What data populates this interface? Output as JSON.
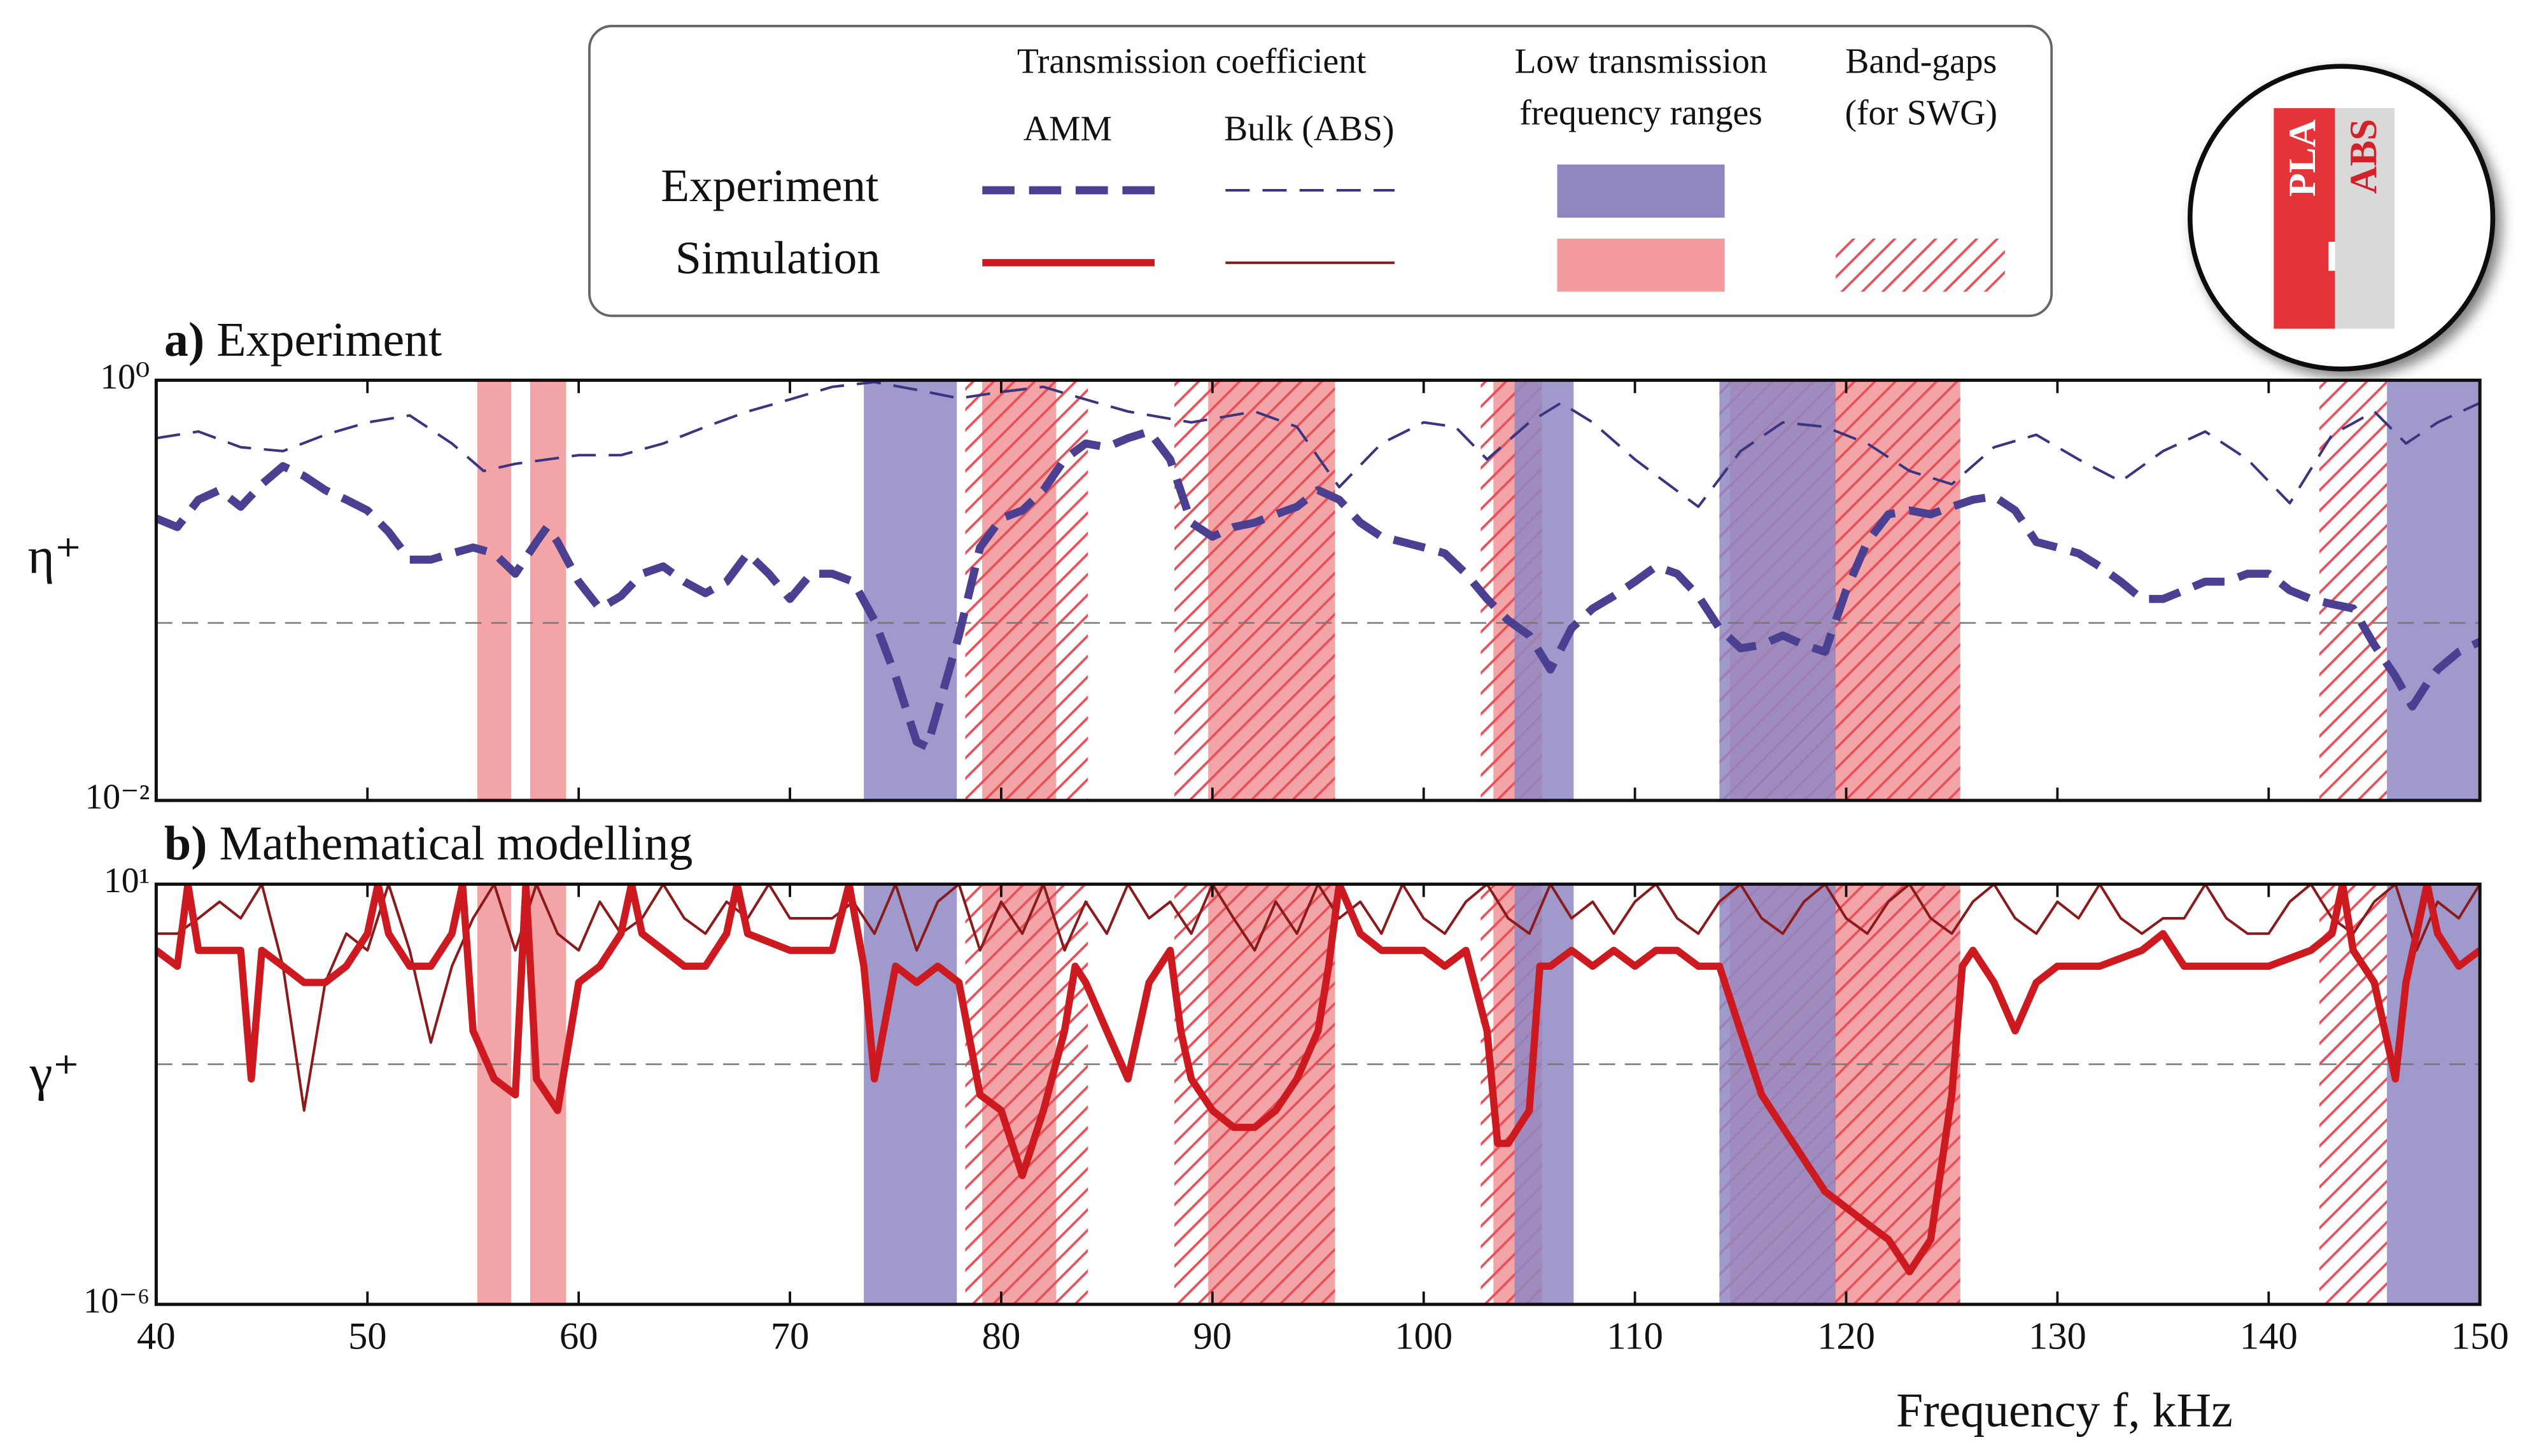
{
  "legend": {
    "header": "Transmission coefficient",
    "rows": [
      "Experiment",
      "Simulation"
    ],
    "low_transmission_label": [
      "Low transmission",
      "frequency ranges"
    ],
    "band_gaps_label": [
      "Band-gaps",
      "(for SWG)"
    ]
  },
  "inset": {
    "labels": [
      "PLA",
      "ABS"
    ]
  },
  "xlabel": "Frequency f, kHz",
  "ranges": {
    "experiment": {
      "color": "#8f87c2",
      "spans": [
        [
          73.5,
          77.9
        ],
        [
          104.3,
          107.1
        ],
        [
          114.0,
          119.5
        ],
        [
          145.6,
          150
        ]
      ]
    },
    "simulation": {
      "color": "#f29a9c",
      "spans": [
        [
          55.2,
          56.8
        ],
        [
          57.7,
          59.4
        ],
        [
          79.1,
          82.6
        ],
        [
          89.8,
          95.8
        ],
        [
          103.3,
          105.6
        ],
        [
          114.5,
          125.4
        ]
      ]
    },
    "band_gaps": {
      "color": "#e8505a",
      "spans": [
        [
          78.3,
          84.1
        ],
        [
          88.2,
          95.8
        ],
        [
          102.7,
          105.6
        ],
        [
          114.0,
          125.4
        ],
        [
          142.4,
          145.6
        ]
      ]
    }
  },
  "chart_data": [
    {
      "type": "line",
      "panel": "a)",
      "title": "Experiment",
      "ylabel": "η⁺",
      "log_scale": true,
      "xlim": [
        40,
        150
      ],
      "xticks": [
        40,
        50,
        60,
        70,
        80,
        90,
        100,
        110,
        120,
        130,
        140,
        150
      ],
      "ylim": [
        0.01,
        1
      ],
      "yticks": [
        {
          "value": 1,
          "label": "10⁰"
        },
        {
          "value": 0.01,
          "label": "10⁻²"
        }
      ],
      "threshold": 0.07,
      "series": [
        {
          "name": "AMM",
          "color": "#4a3f90",
          "dashed": true,
          "x": [
            40,
            41,
            42,
            43,
            44,
            45,
            46,
            47,
            48,
            49,
            50,
            51,
            52,
            53,
            54,
            55,
            56,
            57,
            58,
            58.5,
            59,
            60,
            61,
            62,
            63,
            64,
            65,
            66,
            67,
            68,
            69,
            70,
            71,
            72,
            73,
            74,
            75,
            76,
            76.5,
            77,
            78,
            79,
            80,
            81,
            82,
            83,
            84,
            85,
            86,
            87,
            88,
            89,
            90,
            91,
            92,
            93,
            94,
            95,
            96,
            97,
            98,
            99,
            100,
            101,
            102,
            103,
            104,
            105,
            106,
            107,
            108,
            109,
            110,
            111,
            112,
            113,
            114,
            115,
            116,
            117,
            118,
            119,
            120,
            121,
            122,
            123,
            124,
            125,
            126,
            127,
            128,
            129,
            130,
            131,
            132,
            133,
            134,
            135,
            136,
            137,
            138,
            139,
            140,
            141,
            142,
            143,
            144,
            145,
            146,
            146.8,
            147.5,
            148,
            149,
            150
          ],
          "values": [
            0.22,
            0.2,
            0.27,
            0.3,
            0.25,
            0.32,
            0.39,
            0.35,
            0.3,
            0.27,
            0.24,
            0.19,
            0.14,
            0.14,
            0.15,
            0.16,
            0.15,
            0.12,
            0.17,
            0.2,
            0.17,
            0.11,
            0.082,
            0.094,
            0.12,
            0.13,
            0.11,
            0.097,
            0.11,
            0.15,
            0.12,
            0.091,
            0.12,
            0.12,
            0.11,
            0.072,
            0.039,
            0.019,
            0.018,
            0.027,
            0.061,
            0.16,
            0.22,
            0.24,
            0.3,
            0.42,
            0.5,
            0.48,
            0.53,
            0.57,
            0.42,
            0.21,
            0.18,
            0.2,
            0.21,
            0.23,
            0.25,
            0.3,
            0.27,
            0.21,
            0.18,
            0.17,
            0.16,
            0.15,
            0.12,
            0.091,
            0.072,
            0.061,
            0.042,
            0.066,
            0.082,
            0.094,
            0.11,
            0.13,
            0.12,
            0.094,
            0.066,
            0.053,
            0.055,
            0.061,
            0.055,
            0.051,
            0.1,
            0.17,
            0.23,
            0.24,
            0.23,
            0.25,
            0.27,
            0.28,
            0.24,
            0.17,
            0.16,
            0.15,
            0.13,
            0.11,
            0.091,
            0.091,
            0.1,
            0.11,
            0.11,
            0.12,
            0.12,
            0.1,
            0.091,
            0.086,
            0.082,
            0.055,
            0.039,
            0.028,
            0.036,
            0.042,
            0.051,
            0.057
          ]
        },
        {
          "name": "Bulk (ABS)",
          "color": "#3b3580",
          "dashed": true,
          "x": [
            40,
            42,
            44,
            46,
            48,
            50,
            52,
            54,
            55.5,
            57,
            60,
            62,
            64,
            66,
            68,
            70,
            72,
            74,
            76,
            78,
            80,
            82,
            84,
            86,
            89,
            92,
            94,
            96,
            98,
            100,
            101.5,
            103,
            105,
            106.5,
            108,
            110,
            113,
            115,
            117,
            119,
            121,
            123,
            125,
            127,
            129,
            131,
            133,
            135,
            137,
            139,
            141,
            143,
            145,
            146.5,
            148,
            150
          ],
          "values": [
            0.53,
            0.57,
            0.48,
            0.46,
            0.55,
            0.63,
            0.68,
            0.5,
            0.37,
            0.4,
            0.44,
            0.44,
            0.5,
            0.6,
            0.71,
            0.81,
            0.93,
            0.98,
            0.9,
            0.82,
            0.88,
            0.93,
            0.81,
            0.71,
            0.63,
            0.71,
            0.6,
            0.31,
            0.5,
            0.63,
            0.6,
            0.42,
            0.63,
            0.78,
            0.63,
            0.42,
            0.25,
            0.46,
            0.63,
            0.6,
            0.5,
            0.37,
            0.32,
            0.48,
            0.55,
            0.42,
            0.33,
            0.46,
            0.57,
            0.42,
            0.26,
            0.55,
            0.71,
            0.5,
            0.63,
            0.78
          ]
        }
      ]
    },
    {
      "type": "line",
      "panel": "b)",
      "title": "Mathematical modelling",
      "ylabel": "γ⁺",
      "log_scale": true,
      "xlim": [
        40,
        150
      ],
      "xticks": [
        40,
        50,
        60,
        70,
        80,
        90,
        100,
        110,
        120,
        130,
        140,
        150
      ],
      "ylim": [
        1e-06,
        10
      ],
      "yticks": [
        {
          "value": 10,
          "label": "10¹"
        },
        {
          "value": 1e-06,
          "label": "10⁻⁶"
        }
      ],
      "threshold": 0.01,
      "series": [
        {
          "name": "AMM",
          "color": "#cc1a20",
          "dashed": false,
          "x": [
            40,
            41,
            41.5,
            42,
            43,
            44,
            44.5,
            45,
            46,
            47,
            48,
            49,
            50,
            50.5,
            51,
            52,
            53,
            54,
            54.5,
            55,
            56,
            57,
            57.5,
            58,
            59,
            60,
            61,
            62,
            62.5,
            63,
            65,
            66,
            67,
            67.5,
            68,
            70,
            72,
            72.8,
            73.5,
            74,
            75,
            76,
            77,
            78,
            79,
            80,
            81,
            82,
            83,
            83.5,
            84,
            85,
            86,
            87,
            88,
            88.5,
            89,
            90,
            91,
            92,
            93,
            94,
            95,
            95.5,
            96,
            97,
            98,
            100,
            101,
            102,
            103,
            103.5,
            104,
            105,
            105.5,
            106,
            107,
            108,
            109,
            110,
            111,
            112,
            113,
            114,
            115,
            116,
            117,
            118,
            119,
            120,
            121,
            122,
            123,
            124,
            125,
            125.5,
            126,
            127,
            128,
            129,
            130,
            132,
            134,
            135,
            136,
            138,
            140,
            142,
            143,
            143.5,
            144,
            145,
            146,
            146.5,
            147,
            147.5,
            148,
            149,
            150
          ],
          "values": [
            0.79,
            0.43,
            10,
            0.79,
            0.79,
            0.79,
            0.0057,
            0.79,
            0.43,
            0.23,
            0.23,
            0.43,
            1.5,
            10,
            1.5,
            0.43,
            0.43,
            1.5,
            10,
            0.036,
            0.0057,
            0.0031,
            10,
            0.0057,
            0.0017,
            0.23,
            0.43,
            1.5,
            10,
            1.5,
            0.43,
            0.43,
            1.5,
            10,
            1.5,
            0.79,
            0.79,
            10,
            0.43,
            0.0057,
            0.43,
            0.23,
            0.43,
            0.23,
            0.0031,
            0.0017,
            0.00014,
            0.0017,
            0.036,
            0.43,
            0.23,
            0.036,
            0.0057,
            0.23,
            0.79,
            0.036,
            0.0057,
            0.0017,
            0.00089,
            0.00089,
            0.0017,
            0.0057,
            0.036,
            0.43,
            10,
            1.5,
            0.79,
            0.79,
            0.43,
            0.79,
            0.036,
            0.00048,
            0.00048,
            0.0017,
            0.43,
            0.43,
            0.79,
            0.43,
            0.79,
            0.43,
            0.79,
            0.79,
            0.43,
            0.43,
            0.036,
            0.0031,
            0.00089,
            0.00026,
            7.6e-05,
            4.1e-05,
            2.2e-05,
            1.2e-05,
            3.5e-06,
            1.2e-05,
            0.0031,
            0.43,
            0.79,
            0.23,
            0.036,
            0.23,
            0.43,
            0.43,
            0.79,
            1.5,
            0.43,
            0.43,
            0.43,
            0.79,
            1.5,
            10,
            0.79,
            0.23,
            0.0057,
            0.23,
            1.5,
            10,
            1.5,
            0.43,
            0.79
          ]
        },
        {
          "name": "Bulk (ABS)",
          "color": "#8a1a1c",
          "dashed": false,
          "x": [
            40,
            41,
            42,
            43,
            44,
            45,
            46,
            47,
            48,
            49,
            50,
            51,
            52,
            53,
            54,
            55,
            56,
            57,
            58,
            59,
            60,
            61,
            62,
            63,
            64,
            65,
            66,
            67,
            68,
            69,
            70,
            71,
            72,
            73,
            74,
            75,
            76,
            77,
            78,
            79,
            80,
            81,
            82,
            83,
            84,
            85,
            86,
            87,
            88,
            89,
            90,
            91,
            92,
            93,
            94,
            95,
            96,
            97,
            98,
            99,
            100,
            101,
            102,
            103,
            104,
            105,
            106,
            107,
            108,
            109,
            110,
            111,
            112,
            113,
            114,
            115,
            116,
            117,
            118,
            119,
            120,
            121,
            122,
            123,
            124,
            125,
            126,
            127,
            128,
            129,
            130,
            131,
            132,
            133,
            134,
            135,
            136,
            137,
            138,
            139,
            140,
            141,
            142,
            143,
            144,
            145,
            146,
            147,
            148,
            149,
            150
          ],
          "values": [
            1.5,
            1.5,
            2.7,
            5.1,
            2.7,
            10,
            0.43,
            0.0017,
            0.23,
            1.5,
            0.79,
            10,
            0.79,
            0.023,
            0.43,
            2.7,
            10,
            0.79,
            10,
            1.5,
            0.79,
            5.1,
            1.5,
            2.7,
            10,
            2.7,
            1.5,
            5.1,
            2.7,
            10,
            2.7,
            2.7,
            2.7,
            5.1,
            1.5,
            10,
            0.79,
            5.1,
            10,
            0.79,
            5.1,
            1.5,
            10,
            0.79,
            5.1,
            1.5,
            10,
            2.7,
            5.1,
            1.5,
            10,
            2.7,
            0.79,
            5.1,
            1.5,
            10,
            2.7,
            5.1,
            1.5,
            10,
            2.7,
            1.5,
            5.1,
            10,
            2.7,
            1.5,
            10,
            2.7,
            5.1,
            1.5,
            5.1,
            10,
            2.7,
            1.5,
            5.1,
            10,
            2.7,
            1.5,
            5.1,
            10,
            2.7,
            1.5,
            5.1,
            10,
            2.7,
            1.5,
            5.1,
            10,
            2.7,
            1.5,
            5.1,
            2.7,
            10,
            2.7,
            1.5,
            2.7,
            2.7,
            10,
            2.7,
            1.5,
            1.5,
            5.1,
            10,
            2.7,
            1.5,
            5.1,
            10,
            0.79,
            5.1,
            2.7,
            10
          ]
        }
      ]
    }
  ]
}
